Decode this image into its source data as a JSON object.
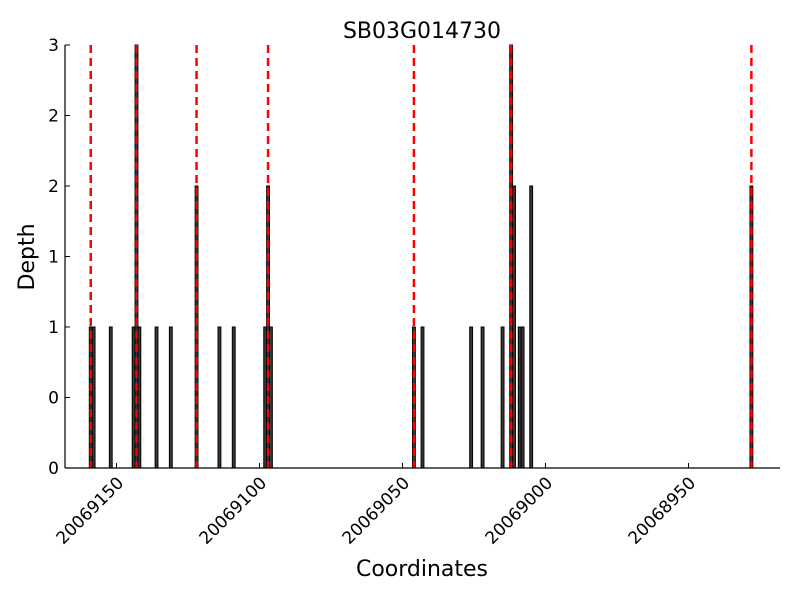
{
  "chart_data": {
    "type": "bar",
    "title": "SB03G014730",
    "xlabel": "Coordinates",
    "ylabel": "Depth",
    "xlim": [
      20069168,
      20068918
    ],
    "ylim": [
      0,
      3
    ],
    "x_axis_reversed": true,
    "grid": false,
    "x_ticks": [
      20069150,
      20069100,
      20069050,
      20069000,
      20068950
    ],
    "x_tick_labels": [
      "20069150",
      "20069100",
      "20069050",
      "20069000",
      "20068950"
    ],
    "y_ticks": [
      0,
      0.5,
      1,
      1.5,
      2,
      2.5,
      3
    ],
    "y_tick_labels": [
      "0",
      "0",
      "1",
      "1",
      "2",
      "2",
      "3"
    ],
    "bar_color": "#3a3a3a",
    "marker_line_color": "#ff0000",
    "bars": [
      {
        "x": 20069159,
        "depth": 1
      },
      {
        "x": 20069158,
        "depth": 1
      },
      {
        "x": 20069152,
        "depth": 1
      },
      {
        "x": 20069144,
        "depth": 1
      },
      {
        "x": 20069143,
        "depth": 3
      },
      {
        "x": 20069142,
        "depth": 1
      },
      {
        "x": 20069136,
        "depth": 1
      },
      {
        "x": 20069131,
        "depth": 1
      },
      {
        "x": 20069122,
        "depth": 2
      },
      {
        "x": 20069114,
        "depth": 1
      },
      {
        "x": 20069109,
        "depth": 1
      },
      {
        "x": 20069098,
        "depth": 1
      },
      {
        "x": 20069097,
        "depth": 2
      },
      {
        "x": 20069096,
        "depth": 1
      },
      {
        "x": 20069046,
        "depth": 1
      },
      {
        "x": 20069043,
        "depth": 1
      },
      {
        "x": 20069026,
        "depth": 1
      },
      {
        "x": 20069022,
        "depth": 1
      },
      {
        "x": 20069015,
        "depth": 1
      },
      {
        "x": 20069012,
        "depth": 3
      },
      {
        "x": 20069011,
        "depth": 2
      },
      {
        "x": 20069009,
        "depth": 1
      },
      {
        "x": 20069008,
        "depth": 1
      },
      {
        "x": 20069005,
        "depth": 2
      },
      {
        "x": 20068928,
        "depth": 2
      }
    ],
    "marker_lines": [
      20069159,
      20069143,
      20069122,
      20069097,
      20069046,
      20069012,
      20068928
    ]
  }
}
